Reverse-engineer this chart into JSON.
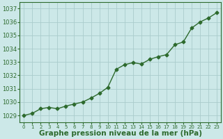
{
  "x": [
    0,
    1,
    2,
    3,
    4,
    5,
    6,
    7,
    8,
    9,
    10,
    11,
    12,
    13,
    14,
    15,
    16,
    17,
    18,
    19,
    20,
    21,
    22,
    23
  ],
  "y": [
    1029.0,
    1029.15,
    1029.5,
    1029.6,
    1029.5,
    1029.7,
    1029.85,
    1030.0,
    1030.3,
    1030.65,
    1031.1,
    1032.45,
    1032.8,
    1032.95,
    1032.85,
    1033.2,
    1033.4,
    1033.55,
    1034.3,
    1034.5,
    1035.55,
    1036.0,
    1036.3,
    1036.7
  ],
  "line_color": "#2d6a2d",
  "marker": "D",
  "marker_color": "#2d6a2d",
  "marker_size": 2.5,
  "background_color": "#cce8e8",
  "grid_color": "#aacccc",
  "axis_label_color": "#2d6a2d",
  "tick_color": "#2d6a2d",
  "xlabel": "Graphe pression niveau de la mer (hPa)",
  "xlabel_fontsize": 7.5,
  "ylim_min": 1028.5,
  "ylim_max": 1037.5,
  "yticks": [
    1029,
    1030,
    1031,
    1032,
    1033,
    1034,
    1035,
    1036,
    1037
  ],
  "xtick_labels": [
    "0",
    "1",
    "2",
    "3",
    "4",
    "5",
    "6",
    "7",
    "8",
    "9",
    "10",
    "11",
    "12",
    "13",
    "14",
    "15",
    "16",
    "17",
    "18",
    "19",
    "20",
    "21",
    "22",
    "23"
  ],
  "line_width": 1.0,
  "plot_bg": "#cce8e8",
  "fig_bg": "#cce8e8"
}
